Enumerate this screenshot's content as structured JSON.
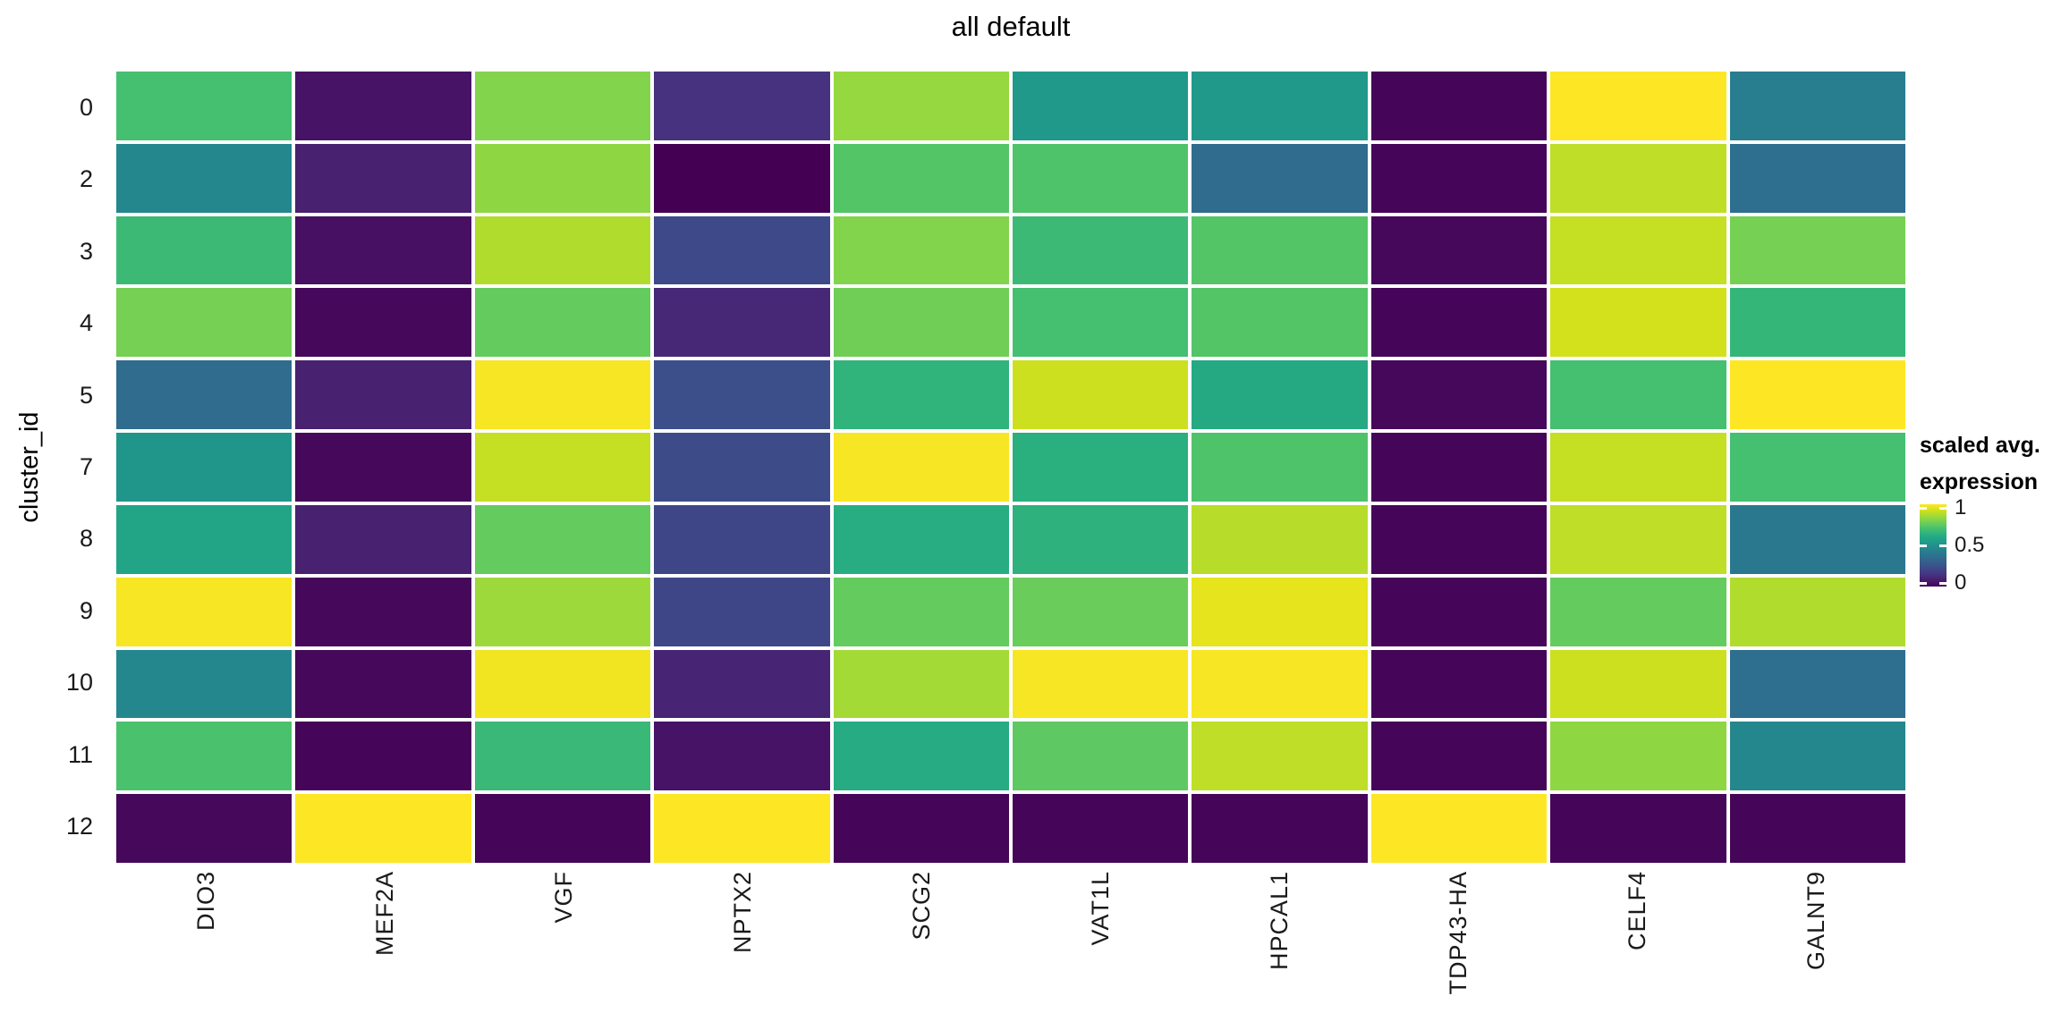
{
  "page": {
    "background": "#ffffff"
  },
  "chart_data": {
    "type": "heatmap",
    "title": "all default",
    "xlabel": "",
    "ylabel": "cluster_id",
    "x_categories": [
      "DIO3",
      "MEF2A",
      "VGF",
      "NPTX2",
      "SCG2",
      "VAT1L",
      "HPCAL1",
      "TDP43-HA",
      "CELF4",
      "GALNT9"
    ],
    "y_categories": [
      "0",
      "2",
      "3",
      "4",
      "5",
      "7",
      "8",
      "9",
      "10",
      "11",
      "12"
    ],
    "value_range": [
      0,
      1
    ],
    "values": [
      [
        0.7,
        0.05,
        0.81,
        0.14,
        0.84,
        0.53,
        0.53,
        0.01,
        1.0,
        0.42
      ],
      [
        0.46,
        0.09,
        0.83,
        0.0,
        0.73,
        0.72,
        0.35,
        0.01,
        0.9,
        0.36
      ],
      [
        0.68,
        0.04,
        0.88,
        0.22,
        0.81,
        0.68,
        0.73,
        0.02,
        0.91,
        0.79
      ],
      [
        0.79,
        0.02,
        0.76,
        0.11,
        0.78,
        0.7,
        0.73,
        0.01,
        0.93,
        0.66
      ],
      [
        0.35,
        0.09,
        0.99,
        0.24,
        0.65,
        0.92,
        0.6,
        0.02,
        0.7,
        1.0
      ],
      [
        0.52,
        0.02,
        0.91,
        0.23,
        0.99,
        0.63,
        0.72,
        0.01,
        0.91,
        0.7
      ],
      [
        0.58,
        0.09,
        0.76,
        0.21,
        0.62,
        0.64,
        0.89,
        0.01,
        0.9,
        0.4
      ],
      [
        0.99,
        0.02,
        0.85,
        0.21,
        0.76,
        0.77,
        0.96,
        0.01,
        0.76,
        0.88
      ],
      [
        0.46,
        0.02,
        0.98,
        0.1,
        0.86,
        0.99,
        0.99,
        0.01,
        0.92,
        0.36
      ],
      [
        0.71,
        0.01,
        0.67,
        0.05,
        0.61,
        0.75,
        0.9,
        0.01,
        0.83,
        0.46
      ],
      [
        0.02,
        1.0,
        0.01,
        1.0,
        0.01,
        0.01,
        0.01,
        1.0,
        0.01,
        0.01
      ]
    ],
    "legend": {
      "title_lines": [
        "scaled avg.",
        "expression"
      ],
      "ticks": [
        "1",
        "0.5",
        "0"
      ],
      "tick_values": [
        1,
        0.5,
        0
      ],
      "position": "right"
    },
    "colormap": {
      "name": "viridis",
      "stops": [
        "#440154",
        "#48186a",
        "#472d7b",
        "#424086",
        "#3b528b",
        "#33638d",
        "#2c728e",
        "#26828e",
        "#21918c",
        "#1fa188",
        "#28ae80",
        "#3fbc73",
        "#5ec962",
        "#84d44b",
        "#addc30",
        "#d8e219",
        "#fde725"
      ]
    },
    "grid_gap_color": "#ffffff",
    "layout": {
      "grid_on": false,
      "legend_position": "right",
      "x_tick_rotation_deg": 90
    }
  }
}
